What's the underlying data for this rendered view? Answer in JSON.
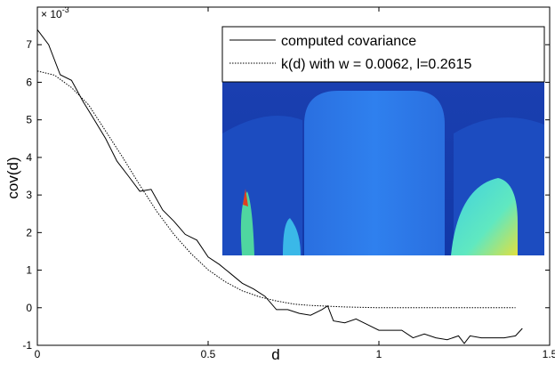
{
  "chart_data": {
    "type": "line",
    "xlabel": "d",
    "ylabel": "cov(d)",
    "y_scale_label": {
      "base": "× 10",
      "exponent": "-3"
    },
    "xlim": [
      0,
      1.5
    ],
    "ylim": [
      -1,
      8
    ],
    "xticks": [
      0,
      0.5,
      1,
      1.5
    ],
    "yticks": [
      -1,
      0,
      1,
      2,
      3,
      4,
      5,
      6,
      7
    ],
    "legend": "top-right",
    "series": [
      {
        "name": "computed covariance",
        "color": "#000000",
        "dash": "solid",
        "x": [
          0,
          0.033,
          0.067,
          0.1,
          0.133,
          0.167,
          0.2,
          0.233,
          0.267,
          0.3,
          0.333,
          0.367,
          0.4,
          0.433,
          0.467,
          0.5,
          0.533,
          0.567,
          0.6,
          0.633,
          0.667,
          0.7,
          0.733,
          0.767,
          0.8,
          0.833,
          0.85,
          0.867,
          0.9,
          0.933,
          0.967,
          1.0,
          1.033,
          1.067,
          1.1,
          1.133,
          1.167,
          1.2,
          1.233,
          1.25,
          1.267,
          1.3,
          1.333,
          1.367,
          1.4,
          1.42
        ],
        "values": [
          7.4,
          7.0,
          6.2,
          6.05,
          5.5,
          5.0,
          4.5,
          3.9,
          3.5,
          3.1,
          3.15,
          2.6,
          2.3,
          1.95,
          1.8,
          1.35,
          1.15,
          0.9,
          0.65,
          0.5,
          0.3,
          -0.05,
          -0.05,
          -0.15,
          -0.2,
          -0.05,
          0.05,
          -0.35,
          -0.4,
          -0.3,
          -0.45,
          -0.6,
          -0.6,
          -0.6,
          -0.8,
          -0.7,
          -0.8,
          -0.85,
          -0.75,
          -0.95,
          -0.75,
          -0.8,
          -0.8,
          -0.8,
          -0.75,
          -0.55
        ]
      },
      {
        "name": "k(d) with w = 0.0062, l=0.2615",
        "color": "#000000",
        "dash": "dotted",
        "x": [
          0,
          0.05,
          0.1,
          0.15,
          0.2,
          0.25,
          0.3,
          0.35,
          0.4,
          0.45,
          0.5,
          0.55,
          0.6,
          0.65,
          0.7,
          0.75,
          0.8,
          0.9,
          1.0,
          1.1,
          1.2,
          1.3,
          1.4
        ],
        "values": [
          6.3,
          6.19,
          5.86,
          5.4,
          4.7,
          4.0,
          3.26,
          2.56,
          1.95,
          1.44,
          1.01,
          0.69,
          0.45,
          0.29,
          0.18,
          0.1,
          0.06,
          0.02,
          0.0,
          0.0,
          0.0,
          0.0,
          0.0
        ]
      }
    ]
  }
}
